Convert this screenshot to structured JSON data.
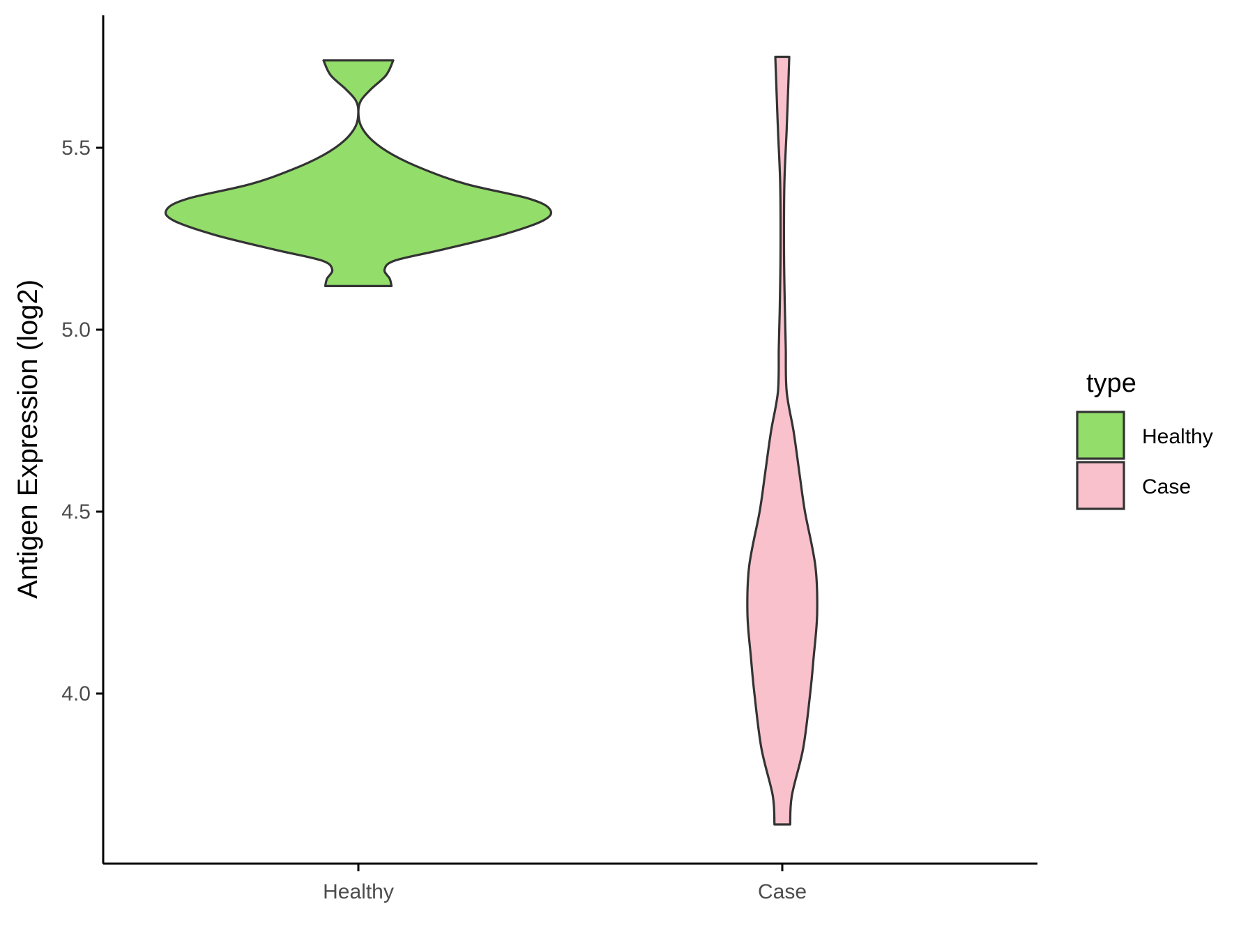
{
  "chart_data": {
    "type": "violin",
    "title": "",
    "xlabel": "",
    "ylabel": "Antigen Expression (log2)",
    "categories": [
      "Healthy",
      "Case"
    ],
    "ylim": [
      3.53,
      5.88
    ],
    "yticks": [
      4.0,
      4.5,
      5.0,
      5.5
    ],
    "grid": false,
    "legend": {
      "title": "type",
      "position": "right",
      "entries": [
        {
          "label": "Healthy",
          "color": "#93DD6A"
        },
        {
          "label": "Case",
          "color": "#F8C1CC"
        }
      ]
    },
    "outline_color": "#333333",
    "series": [
      {
        "category": "Healthy",
        "color": "#93DD6A",
        "profile": [
          [
            5.12,
            0.19
          ],
          [
            5.14,
            0.18
          ],
          [
            5.165,
            0.15
          ],
          [
            5.19,
            0.21
          ],
          [
            5.22,
            0.48
          ],
          [
            5.26,
            0.82
          ],
          [
            5.3,
            1.06
          ],
          [
            5.33,
            1.1
          ],
          [
            5.36,
            0.98
          ],
          [
            5.4,
            0.62
          ],
          [
            5.44,
            0.38
          ],
          [
            5.48,
            0.2
          ],
          [
            5.52,
            0.08
          ],
          [
            5.56,
            0.015
          ],
          [
            5.6,
            0.0
          ],
          [
            5.63,
            0.015
          ],
          [
            5.66,
            0.07
          ],
          [
            5.7,
            0.16
          ],
          [
            5.74,
            0.2
          ]
        ]
      },
      {
        "category": "Case",
        "color": "#F8C1CC",
        "profile": [
          [
            3.64,
            0.045
          ],
          [
            3.72,
            0.055
          ],
          [
            3.85,
            0.12
          ],
          [
            4.0,
            0.16
          ],
          [
            4.1,
            0.18
          ],
          [
            4.22,
            0.2
          ],
          [
            4.35,
            0.19
          ],
          [
            4.5,
            0.13
          ],
          [
            4.6,
            0.1
          ],
          [
            4.72,
            0.065
          ],
          [
            4.83,
            0.025
          ],
          [
            4.95,
            0.02
          ],
          [
            5.05,
            0.015
          ],
          [
            5.22,
            0.01
          ],
          [
            5.4,
            0.012
          ],
          [
            5.55,
            0.025
          ],
          [
            5.68,
            0.035
          ],
          [
            5.75,
            0.04
          ]
        ]
      }
    ]
  }
}
